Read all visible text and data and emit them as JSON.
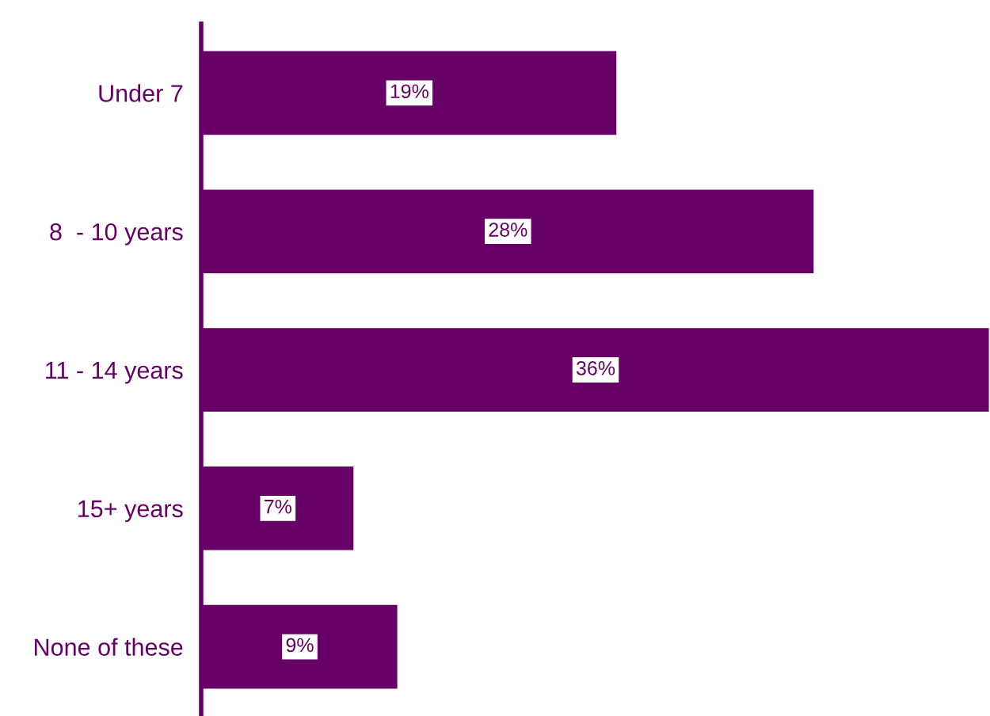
{
  "chart_data": {
    "type": "bar",
    "orientation": "horizontal",
    "categories": [
      "Under 7",
      "8  - 10 years",
      "11 - 14 years",
      "15+ years",
      "None of these"
    ],
    "values": [
      19,
      28,
      36,
      7,
      9
    ],
    "value_labels": [
      "19%",
      "28%",
      "36%",
      "7%",
      "9%"
    ],
    "color": "#660066",
    "xlim": [
      0,
      36
    ],
    "tick_labels": "y",
    "grid": false,
    "legend": false
  }
}
